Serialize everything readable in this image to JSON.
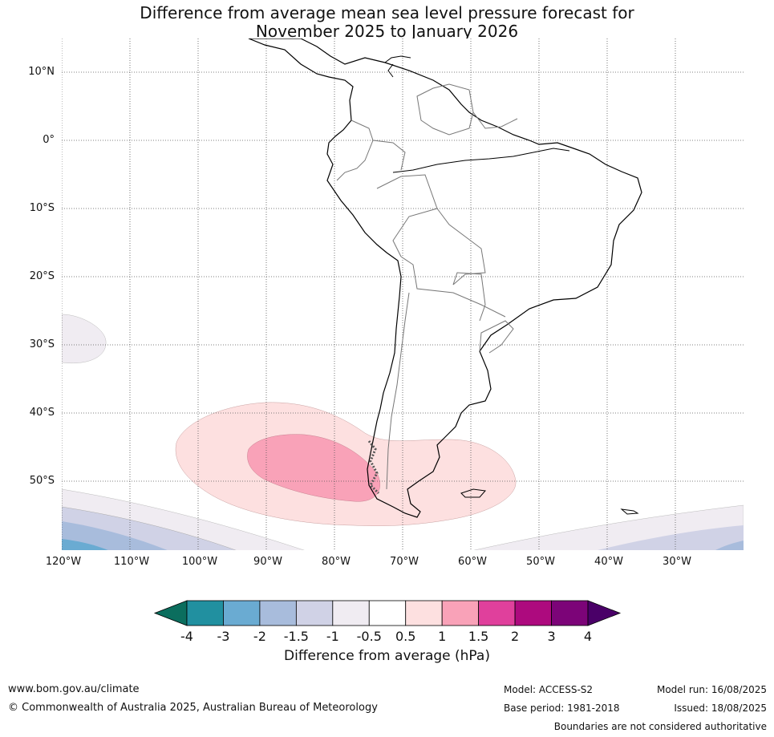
{
  "title": {
    "line1": "Difference from average mean sea level pressure forecast for",
    "line2": "November 2025 to January 2026"
  },
  "map": {
    "lat_labels": [
      "10°N",
      "0°",
      "10°S",
      "20°S",
      "30°S",
      "40°S",
      "50°S"
    ],
    "lon_labels": [
      "120°W",
      "110°W",
      "100°W",
      "90°W",
      "80°W",
      "70°W",
      "60°W",
      "50°W",
      "40°W",
      "30°W"
    ],
    "extent": {
      "lon": [
        -120,
        -20
      ],
      "lat": [
        -60,
        15
      ]
    }
  },
  "colorbar": {
    "title": "Difference from average (hPa)",
    "tick_labels": [
      "-4",
      "-3",
      "-2",
      "-1.5",
      "-1",
      "-0.5",
      "0.5",
      "1",
      "1.5",
      "2",
      "3",
      "4"
    ],
    "colors": [
      "#0b6e5e",
      "#2190a0",
      "#6aabd2",
      "#a8bcdc",
      "#d0d2e6",
      "#f0ecf2",
      "#ffffff",
      "#fde0e0",
      "#f9a2b8",
      "#e0409c",
      "#ad0a7e",
      "#7c0478",
      "#4a0068"
    ]
  },
  "footer": {
    "website": "www.bom.gov.au/climate",
    "copyright": "© Commonwealth of Australia 2025, Australian Bureau of Meteorology",
    "model": "Model: ACCESS-S2",
    "base_period": "Base period: 1981-2018",
    "model_run": "Model run: 16/08/2025",
    "issued": "Issued: 18/08/2025",
    "disclaimer": "Boundaries are not considered authoritative"
  }
}
